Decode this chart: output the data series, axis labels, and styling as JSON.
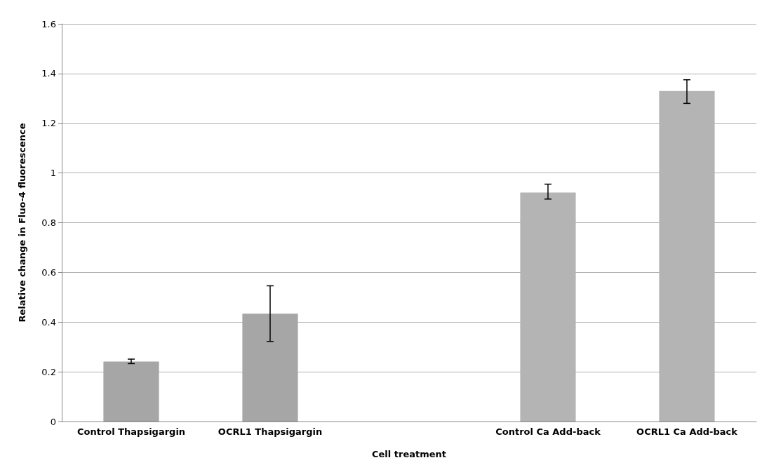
{
  "chart_data": {
    "type": "bar",
    "xlabel": "Cell treatment",
    "ylabel": "Relative change in Fluo-4 fluorescence",
    "categories": [
      "Control Thapsigargin",
      "OCRL1 Thapsigargin",
      null,
      "Control Ca Add-back",
      "OCRL1 Ca Add-back"
    ],
    "values": [
      0.241,
      0.434,
      null,
      0.921,
      1.33
    ],
    "errors": [
      [
        0.233,
        0.251
      ],
      [
        0.322,
        0.546
      ],
      null,
      [
        0.895,
        0.955
      ],
      [
        1.28,
        1.375
      ]
    ],
    "colors": [
      "#a6a6a6",
      "#a6a6a6",
      "#a6a6a6",
      "#b4b4b4",
      "#b4b4b4"
    ],
    "ylim": [
      0,
      1.6
    ],
    "yticks": [
      0,
      0.2,
      0.4,
      0.6,
      0.8,
      1,
      1.2,
      1.4,
      1.6
    ],
    "grid": "y"
  }
}
